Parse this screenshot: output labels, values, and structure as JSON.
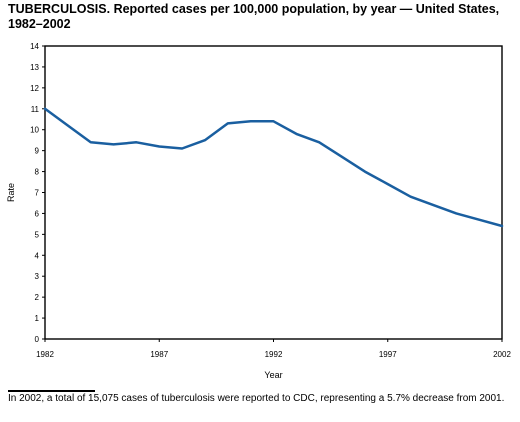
{
  "title": {
    "lead": "TUBERCULOSIS.",
    "rest": " Reported cases per 100,000 population, by year — United States, 1982–2002"
  },
  "footnote": "In 2002, a total of 15,075 cases of tuberculosis were reported to CDC, representing a 5.7% decrease from 2001.",
  "chart_data": {
    "type": "line",
    "xlabel": "Year",
    "ylabel": "Rate",
    "xlim": [
      1982,
      2002
    ],
    "ylim": [
      0,
      14
    ],
    "x_ticks": [
      1982,
      1987,
      1992,
      1997,
      2002
    ],
    "y_ticks": [
      0,
      1,
      2,
      3,
      4,
      5,
      6,
      7,
      8,
      9,
      10,
      11,
      12,
      13,
      14
    ],
    "grid": false,
    "legend": "none",
    "line_color": "#1a5fa0",
    "series": [
      {
        "x": [
          1982,
          1983,
          1984,
          1985,
          1986,
          1987,
          1988,
          1989,
          1990,
          1991,
          1992,
          1993,
          1994,
          1995,
          1996,
          1997,
          1998,
          1999,
          2000,
          2001,
          2002
        ],
        "values": [
          11.0,
          10.2,
          9.4,
          9.3,
          9.4,
          9.2,
          9.1,
          9.5,
          10.3,
          10.4,
          10.4,
          9.8,
          9.4,
          8.7,
          8.0,
          7.4,
          6.8,
          6.4,
          6.0,
          5.7,
          5.4
        ]
      }
    ]
  }
}
